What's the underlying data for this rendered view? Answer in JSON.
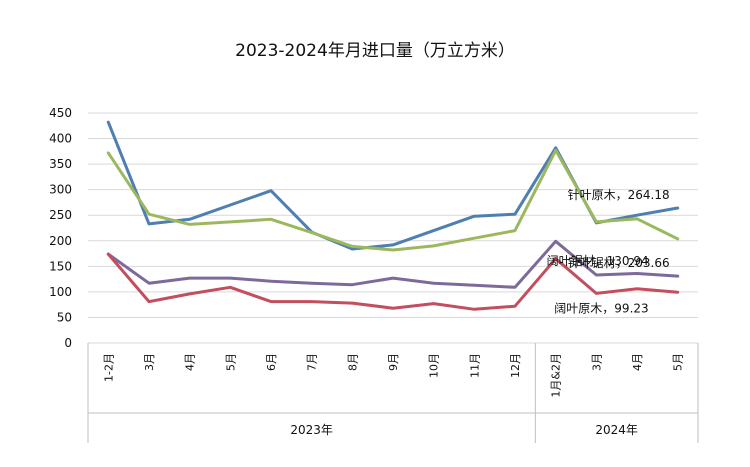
{
  "chart_data": {
    "type": "line",
    "title": "2023-2024年月进口量（万立方米）",
    "xlabel": "",
    "ylabel": "",
    "ylim": [
      0,
      450
    ],
    "yticks": [
      0,
      50,
      100,
      150,
      200,
      250,
      300,
      350,
      400,
      450
    ],
    "grid": true,
    "categories": [
      "1-2月",
      "3月",
      "4月",
      "5月",
      "6月",
      "7月",
      "8月",
      "9月",
      "10月",
      "11月",
      "12月",
      "1月&2月",
      "3月",
      "4月",
      "5月"
    ],
    "groups": [
      {
        "label": "2023年",
        "start": 0,
        "end": 10
      },
      {
        "label": "2024年",
        "start": 11,
        "end": 14
      }
    ],
    "series": [
      {
        "name": "针叶原木",
        "color": "#4e7fb0",
        "values": [
          432,
          233,
          242,
          270,
          298,
          217,
          184,
          192,
          220,
          248,
          252,
          382,
          235,
          250,
          264.18
        ],
        "end_label": "针叶原木，264.18"
      },
      {
        "name": "针叶锯材",
        "color": "#9cb85f",
        "values": [
          372,
          252,
          232,
          237,
          242,
          216,
          189,
          182,
          190,
          205,
          220,
          377,
          237,
          243,
          203.66
        ],
        "end_label": "针叶锯材，203.66"
      },
      {
        "name": "阔叶锯材",
        "color": "#7e6a9a",
        "values": [
          174,
          117,
          127,
          127,
          121,
          117,
          114,
          127,
          117,
          113,
          109,
          199,
          133,
          136,
          130.94
        ],
        "end_label": "阔叶锯材，130.94"
      },
      {
        "name": "阔叶原木",
        "color": "#c24e5e",
        "values": [
          174,
          81,
          96,
          109,
          81,
          81,
          78,
          68,
          77,
          66,
          72,
          165,
          97,
          106,
          99.23
        ],
        "end_label": "阔叶原木，99.23"
      }
    ]
  }
}
